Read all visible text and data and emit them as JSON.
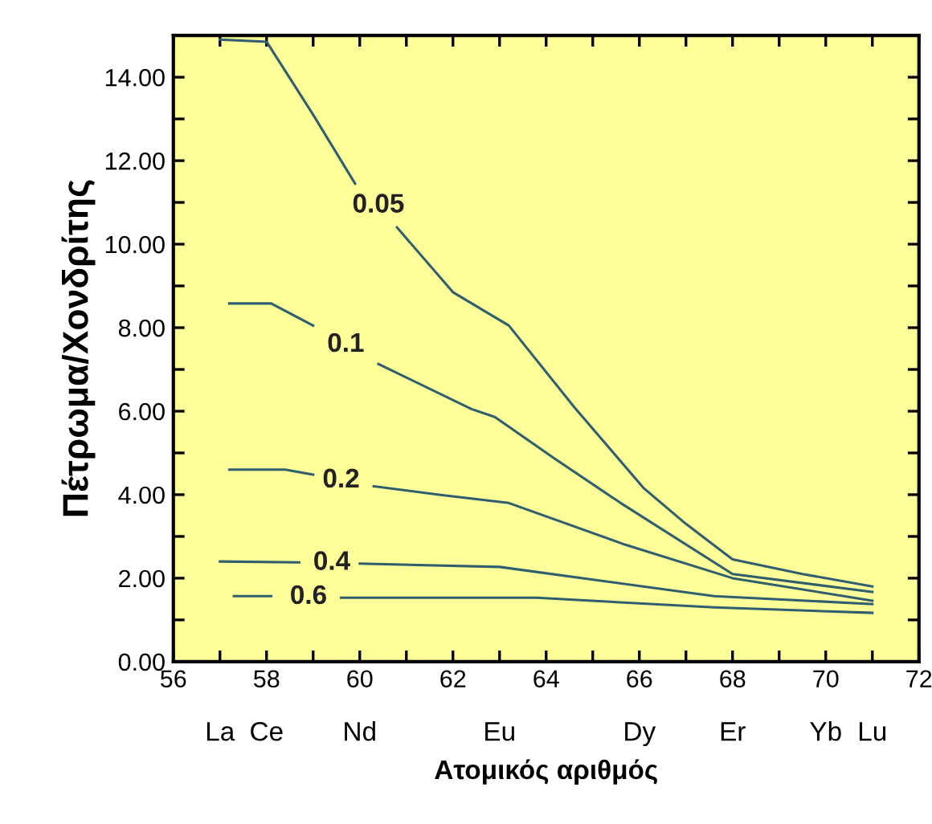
{
  "chart_data": {
    "type": "line",
    "xlabel": "Ατομικός αριθμός",
    "ylabel": "Πέτρωμα/Χονδρίτης",
    "xlim": [
      56,
      72
    ],
    "xticks": [
      56,
      {
        "value": 57,
        "label": null
      },
      58,
      {
        "value": 59,
        "label": null
      },
      60,
      {
        "value": 61,
        "label": null
      },
      62,
      {
        "value": 63,
        "label": null
      },
      64,
      {
        "value": 65,
        "label": null
      },
      66,
      {
        "value": 67,
        "label": null
      },
      68,
      {
        "value": 69,
        "label": null
      },
      70,
      {
        "value": 71,
        "label": null
      },
      72
    ],
    "ylim": [
      0,
      15
    ],
    "yticks": [
      {
        "value": 0,
        "label": "0.00"
      },
      {
        "value": 1,
        "label": null
      },
      {
        "value": 2,
        "label": "2.00"
      },
      {
        "value": 3,
        "label": null
      },
      {
        "value": 4,
        "label": "4.00"
      },
      {
        "value": 5,
        "label": null
      },
      {
        "value": 6,
        "label": "6.00"
      },
      {
        "value": 7,
        "label": null
      },
      {
        "value": 8,
        "label": "8.00"
      },
      {
        "value": 9,
        "label": null
      },
      {
        "value": 10,
        "label": "10.00"
      },
      {
        "value": 11,
        "label": null
      },
      {
        "value": 12,
        "label": "12.00"
      },
      {
        "value": 13,
        "label": null
      },
      {
        "value": 14,
        "label": "14.00"
      }
    ],
    "grid": false,
    "legend": false,
    "marker": "none",
    "line_style": "solid",
    "series": [
      {
        "name": "0.05",
        "color": "#2f5f6e",
        "x": [
          57,
          58,
          59,
          59.9,
          60.4,
          60.8,
          62,
          63.2,
          64.6,
          66.1,
          67,
          68,
          69.5,
          71
        ],
        "values": [
          14.9,
          14.85,
          13.1,
          11.45,
          null,
          10.4,
          8.85,
          8.05,
          6.1,
          4.15,
          3.3,
          2.45,
          2.1,
          1.8
        ]
      },
      {
        "name": "0.1",
        "color": "#2f5f6e",
        "x": [
          57.2,
          58.1,
          59,
          59.7,
          60.4,
          62.4,
          62.9,
          64.2,
          65.6,
          68,
          71
        ],
        "values": [
          8.58,
          8.58,
          8.05,
          null,
          7.13,
          6.05,
          5.86,
          4.85,
          3.8,
          2.1,
          1.67
        ]
      },
      {
        "name": "0.2",
        "color": "#2f5f6e",
        "x": [
          57.2,
          58.4,
          59,
          59.6,
          60.3,
          61.7,
          63.2,
          65.7,
          68,
          71
        ],
        "values": [
          4.6,
          4.6,
          4.48,
          null,
          4.2,
          4.0,
          3.8,
          2.8,
          2.0,
          1.46
        ]
      },
      {
        "name": "0.4",
        "color": "#2f5f6e",
        "x": [
          57,
          58.7,
          59.4,
          60,
          63,
          65.1,
          67.6,
          71
        ],
        "values": [
          2.4,
          2.38,
          null,
          2.35,
          2.27,
          1.95,
          1.57,
          1.38
        ]
      },
      {
        "name": "0.6",
        "color": "#2f5f6e",
        "x": [
          57.3,
          58.1,
          58.9,
          59.6,
          63.8,
          67.6,
          71
        ],
        "values": [
          1.57,
          1.57,
          null,
          1.53,
          1.53,
          1.3,
          1.17
        ]
      }
    ],
    "annotations": [
      "La",
      "Ce",
      "Nd",
      "Eu",
      "Dy",
      "Er",
      "Yb",
      "Lu"
    ]
  }
}
